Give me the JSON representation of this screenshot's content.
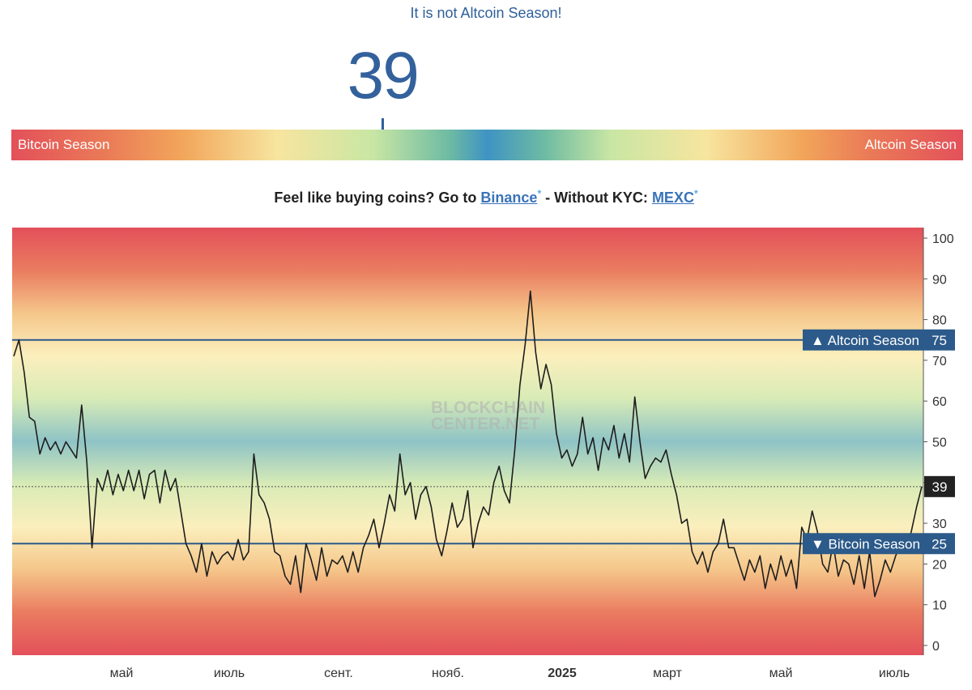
{
  "header": {
    "status_text": "It is not Altcoin Season!",
    "index_value": "39",
    "gauge_left_label": "Bitcoin Season",
    "gauge_right_label": "Altcoin Season",
    "gauge_position": 39
  },
  "promo": {
    "prefix": "Feel like buying coins? Go to ",
    "link1": "Binance",
    "star": "*",
    "middle": " - Without KYC: ",
    "link2": "MEXC"
  },
  "chart_data": {
    "type": "line",
    "title": "",
    "xlabel": "",
    "ylabel": "",
    "ylim": [
      0,
      100
    ],
    "yticks": [
      0,
      10,
      20,
      30,
      40,
      50,
      60,
      70,
      80,
      90,
      100
    ],
    "xticks": [
      "май",
      "июль",
      "сент.",
      "нояб.",
      "2025",
      "март",
      "май",
      "июль"
    ],
    "watermark": [
      "BLOCKCHAIN",
      "CENTER.NET"
    ],
    "reference_lines": [
      {
        "label": "▲ Altcoin Season",
        "value": 75
      },
      {
        "label": "▼ Bitcoin Season",
        "value": 25
      }
    ],
    "current_value": 39,
    "series": [
      {
        "values": [
          71,
          75,
          67,
          56,
          55,
          47,
          51,
          48,
          50,
          47,
          50,
          48,
          46,
          59,
          45,
          24,
          41,
          38,
          43,
          37,
          42,
          38,
          43,
          38,
          43,
          36,
          42,
          43,
          35,
          43,
          38,
          41,
          33,
          25,
          22,
          18,
          25,
          17,
          23,
          20,
          22,
          23,
          21,
          26,
          21,
          23,
          47,
          37,
          35,
          31,
          23,
          22,
          17,
          15,
          22,
          13,
          25,
          21,
          16,
          24,
          17,
          21,
          20,
          22,
          18,
          23,
          18,
          24,
          27,
          31,
          24,
          30,
          37,
          33,
          47,
          37,
          40,
          31,
          37,
          39,
          34,
          26,
          22,
          28,
          35,
          29,
          31,
          38,
          24,
          30,
          34,
          32,
          40,
          44,
          38,
          35,
          48,
          64,
          74,
          87,
          72,
          63,
          69,
          64,
          52,
          46,
          48,
          44,
          47,
          56,
          47,
          51,
          43,
          51,
          48,
          54,
          46,
          52,
          45,
          61,
          50,
          41,
          44,
          46,
          45,
          48,
          42,
          37,
          30,
          31,
          23,
          20,
          23,
          18,
          23,
          25,
          31,
          24,
          24,
          20,
          16,
          21,
          18,
          22,
          14,
          20,
          16,
          22,
          17,
          21,
          14,
          29,
          26,
          33,
          28,
          20,
          18,
          25,
          17,
          21,
          20,
          15,
          22,
          14,
          23,
          12,
          16,
          21,
          18,
          22,
          25,
          24,
          28,
          34,
          39
        ]
      }
    ]
  },
  "colors": {
    "series_line": "#1e1e1e",
    "reference_line": "#2c5a8a",
    "label_box": "#2c5a8a",
    "current_box": "#222222",
    "bitcoin_red": "#e3505a",
    "mid_blue": "#8ec3c6"
  }
}
